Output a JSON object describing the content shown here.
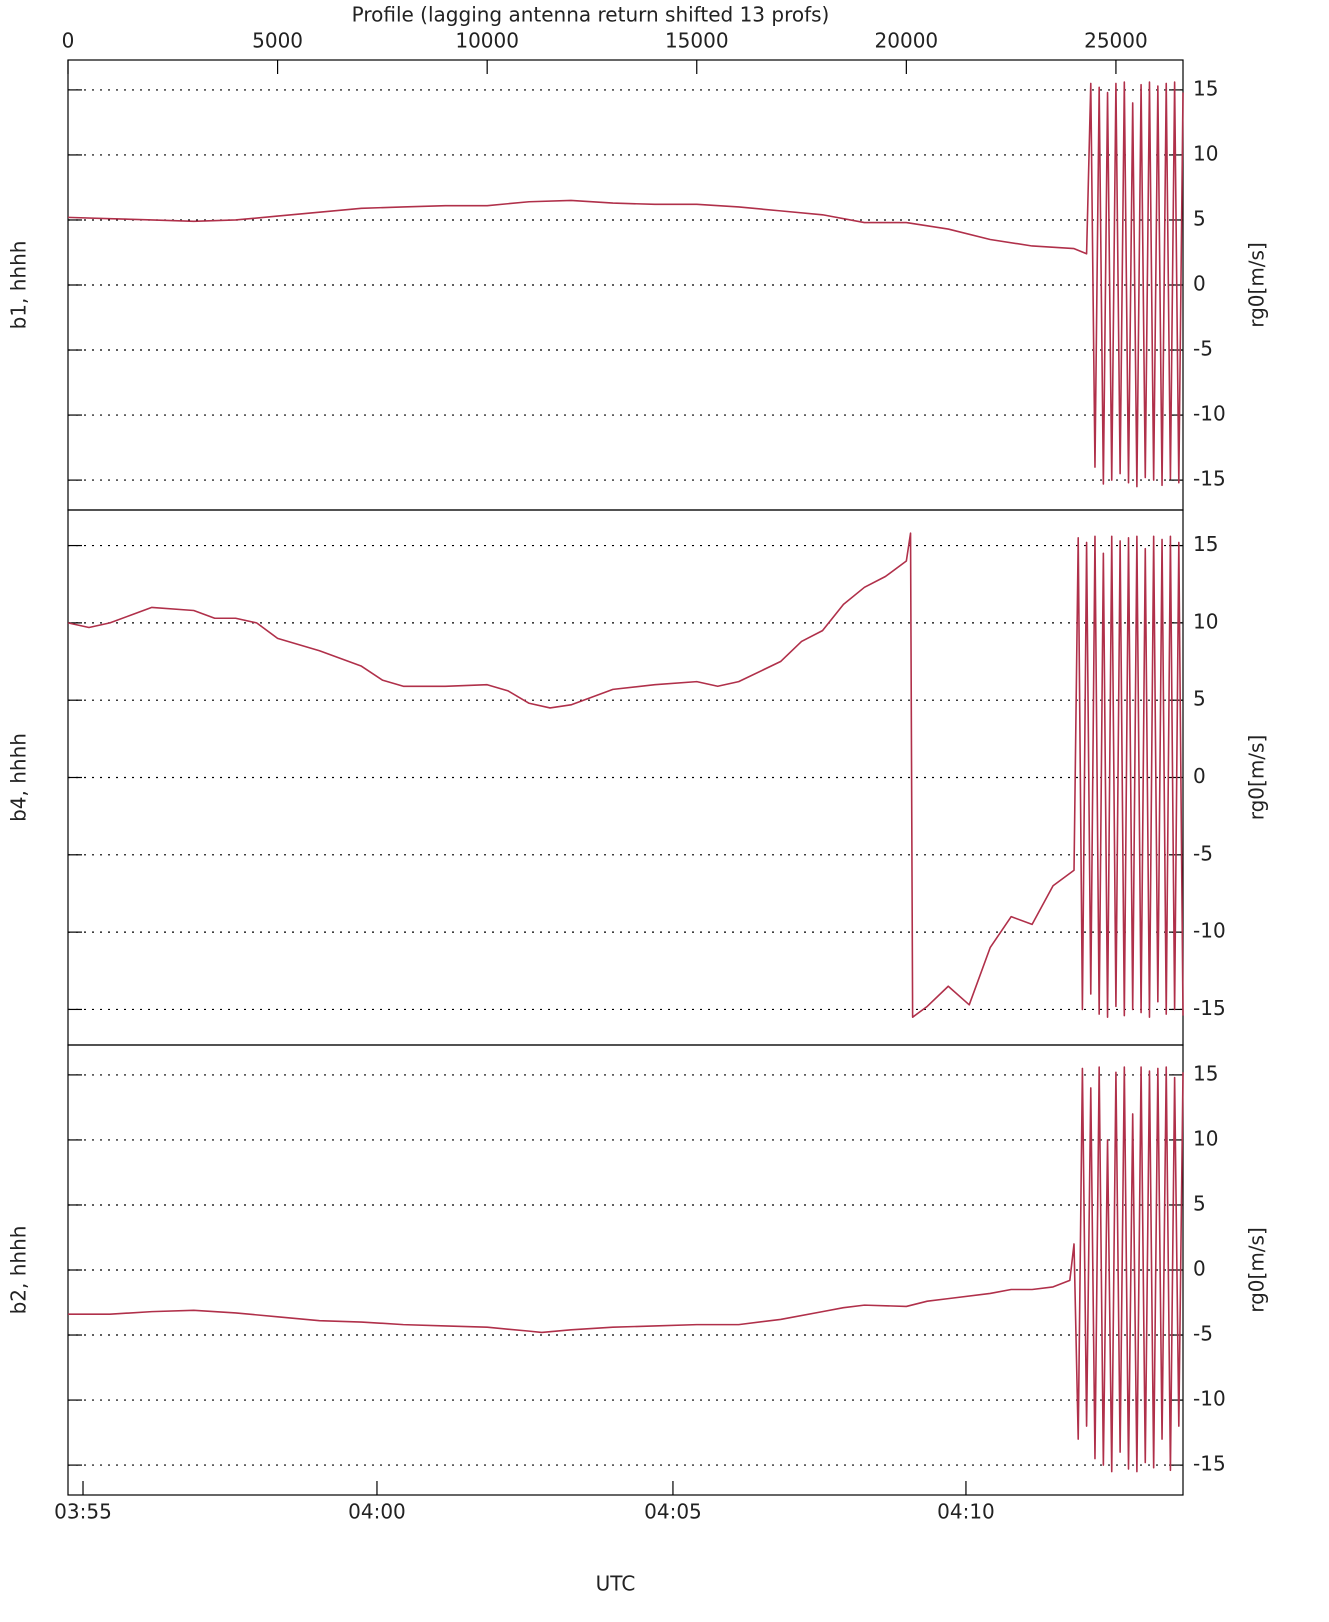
{
  "chart_data": [
    {
      "type": "line",
      "title": "Profile (lagging antenna return shifted 13 profs)",
      "ylabel": "b1, hhhh",
      "ylabel_right": "rg0[m/s]",
      "xlim": [
        0,
        26600
      ],
      "xticks": [
        0,
        5000,
        10000,
        15000,
        20000,
        25000
      ],
      "ylim": [
        -17.3,
        17.3
      ],
      "yticks": [
        -15,
        -10,
        -5,
        0,
        5,
        10,
        15
      ],
      "grid": true,
      "x": [
        0,
        1000,
        2000,
        3000,
        4000,
        5000,
        6000,
        7000,
        8000,
        9000,
        10000,
        11000,
        12000,
        13000,
        14000,
        15000,
        16000,
        17000,
        18000,
        19000,
        20000,
        21000,
        22000,
        23000,
        24000,
        24300,
        24400,
        24500,
        24600,
        24700,
        24800,
        24900,
        25000,
        25100,
        25200,
        25300,
        25400,
        25500,
        25600,
        25700,
        25800,
        25900,
        26000,
        26100,
        26200,
        26300,
        26400,
        26500,
        26600
      ],
      "series": [
        {
          "color": "#b0304a",
          "values": [
            5.2,
            5.1,
            5.0,
            4.9,
            5.0,
            5.3,
            5.6,
            5.9,
            6.0,
            6.1,
            6.1,
            6.4,
            6.5,
            6.3,
            6.2,
            6.2,
            6.0,
            5.7,
            5.4,
            4.8,
            4.8,
            4.3,
            3.5,
            3.0,
            2.8,
            2.4,
            15.5,
            -14,
            15.2,
            -15.3,
            14.8,
            -15,
            15.5,
            -14.5,
            15.6,
            -15.2,
            14,
            -15.5,
            15.4,
            -14.8,
            15.6,
            -15,
            15.3,
            -15.4,
            15.5,
            -14.9,
            15.6,
            -15.2,
            14.8
          ]
        }
      ]
    },
    {
      "type": "line",
      "ylabel": "b4, hhhh",
      "ylabel_right": "rg0[m/s]",
      "xlim": [
        0,
        26600
      ],
      "ylim": [
        -17.3,
        17.3
      ],
      "yticks": [
        -15,
        -10,
        -5,
        0,
        5,
        10,
        15
      ],
      "grid": true,
      "x": [
        0,
        500,
        1000,
        1500,
        2000,
        3000,
        3500,
        4000,
        4500,
        5000,
        6000,
        7000,
        7500,
        8000,
        9000,
        10000,
        10500,
        11000,
        11500,
        12000,
        13000,
        14000,
        15000,
        15500,
        16000,
        17000,
        17500,
        18000,
        18500,
        19000,
        19500,
        20000,
        20100,
        20150,
        20500,
        21000,
        21500,
        22000,
        22500,
        23000,
        23500,
        24000,
        24100,
        24200,
        24300,
        24400,
        24500,
        24600,
        24700,
        24800,
        24900,
        25000,
        25100,
        25200,
        25300,
        25400,
        25500,
        25600,
        25700,
        25800,
        25900,
        26000,
        26100,
        26200,
        26300,
        26400,
        26500,
        26600
      ],
      "series": [
        {
          "color": "#b0304a",
          "values": [
            10,
            9.7,
            10.0,
            10.5,
            11.0,
            10.8,
            10.3,
            10.3,
            10.0,
            9.0,
            8.2,
            7.2,
            6.3,
            5.9,
            5.9,
            6.0,
            5.6,
            4.8,
            4.5,
            4.7,
            5.7,
            6.0,
            6.2,
            5.9,
            6.2,
            7.5,
            8.8,
            9.5,
            11.2,
            12.3,
            13.0,
            14.0,
            15.8,
            -15.5,
            -14.8,
            -13.5,
            -14.7,
            -11.0,
            -9.0,
            -9.5,
            -7.0,
            -6.0,
            15.5,
            -15,
            15.2,
            -14,
            15.6,
            -15.3,
            14.5,
            -15.5,
            15.6,
            -14.8,
            15.3,
            -15.4,
            15.5,
            -15,
            15.6,
            -15.2,
            14.8,
            -15.5,
            15.6,
            -14.5,
            15.4,
            -15.3,
            15.6,
            -15,
            15.2,
            -15.4
          ]
        }
      ]
    },
    {
      "type": "line",
      "ylabel": "b2, hhhh",
      "ylabel_right": "rg0[m/s]",
      "xlabel": "UTC",
      "xlim": [
        0,
        26600
      ],
      "xticks": [
        {
          "value": 358,
          "label": "03:55"
        },
        {
          "value": 7371,
          "label": "04:00"
        },
        {
          "value": 14432,
          "label": "04:05"
        },
        {
          "value": 21422,
          "label": "04:10"
        }
      ],
      "ylim": [
        -17.3,
        17.3
      ],
      "yticks": [
        -15,
        -10,
        -5,
        0,
        5,
        10,
        15
      ],
      "grid": true,
      "x": [
        0,
        1000,
        2000,
        3000,
        4000,
        5000,
        6000,
        7000,
        8000,
        9000,
        10000,
        11000,
        11300,
        12000,
        13000,
        14000,
        15000,
        16000,
        17000,
        18000,
        18500,
        19000,
        20000,
        20500,
        21000,
        22000,
        22500,
        23000,
        23500,
        23900,
        24000,
        24100,
        24200,
        24300,
        24400,
        24500,
        24600,
        24700,
        24800,
        24900,
        25000,
        25100,
        25200,
        25300,
        25400,
        25500,
        25600,
        25700,
        25800,
        25900,
        26000,
        26100,
        26200,
        26300,
        26400,
        26500,
        26600
      ],
      "series": [
        {
          "color": "#b0304a",
          "values": [
            -3.4,
            -3.4,
            -3.2,
            -3.1,
            -3.3,
            -3.6,
            -3.9,
            -4.0,
            -4.2,
            -4.3,
            -4.4,
            -4.7,
            -4.8,
            -4.6,
            -4.4,
            -4.3,
            -4.2,
            -4.2,
            -3.8,
            -3.2,
            -2.9,
            -2.7,
            -2.8,
            -2.4,
            -2.2,
            -1.8,
            -1.5,
            -1.5,
            -1.3,
            -0.8,
            2,
            -13,
            15.5,
            -12,
            14,
            -14.5,
            15.6,
            -15,
            10,
            -15.5,
            15.2,
            -14,
            15.6,
            -15.3,
            12,
            -15.5,
            15.6,
            -14.8,
            15.3,
            -15.2,
            15.5,
            -13,
            15.6,
            -15.4,
            14.8,
            -12,
            15.2
          ]
        }
      ]
    }
  ]
}
